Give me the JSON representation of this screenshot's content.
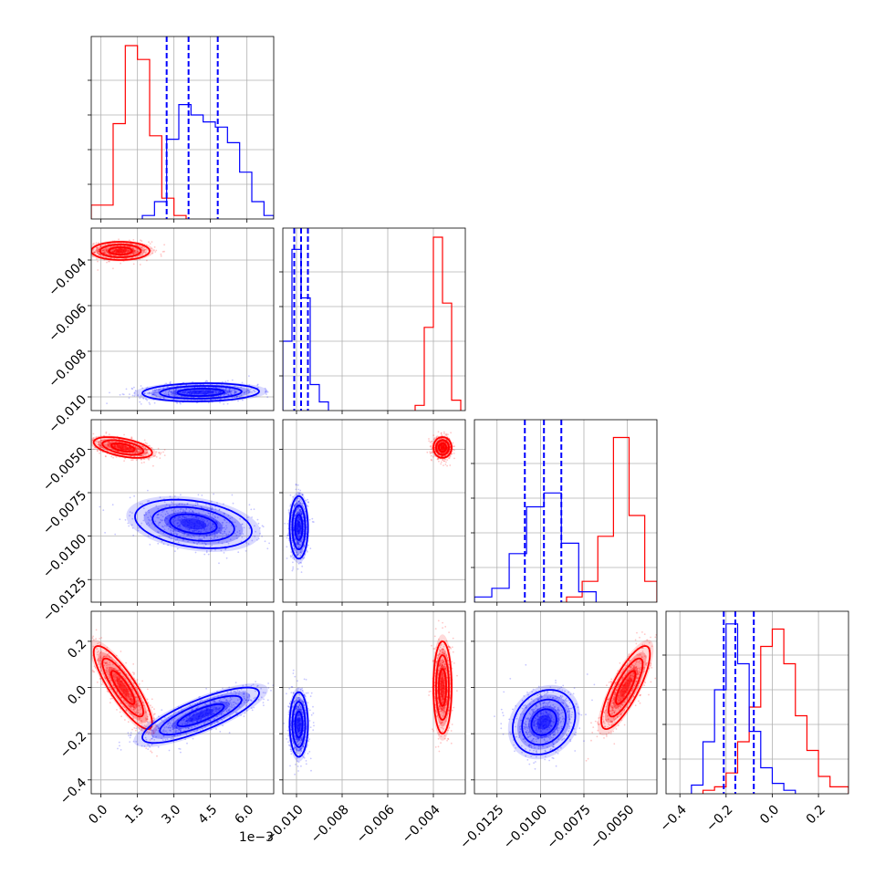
{
  "chart_data": {
    "type": "corner",
    "grid": true,
    "colors": {
      "red": "#ff0000",
      "blue": "#0000ff",
      "grid": "#b0b0b0",
      "frame": "#000000"
    },
    "variables": [
      {
        "range": [
          -0.0004,
          0.0071
        ],
        "ticks": [
          0.0,
          0.0015,
          0.003,
          0.0045,
          0.006
        ],
        "tick_labels": [
          "0.0",
          "1.5",
          "3.0",
          "4.5",
          "6.0"
        ],
        "offset_label": "1e−3"
      },
      {
        "range": [
          -0.0106,
          -0.0026
        ],
        "ticks": [
          -0.01,
          -0.008,
          -0.006,
          -0.004
        ],
        "tick_labels": [
          "−0.010",
          "−0.008",
          "−0.006",
          "−0.004"
        ]
      },
      {
        "range": [
          -0.0138,
          -0.0033
        ],
        "ticks": [
          -0.0125,
          -0.01,
          -0.0075,
          -0.005
        ],
        "tick_labels": [
          "−0.0125",
          "−0.0100",
          "−0.0075",
          "−0.0050"
        ]
      },
      {
        "range": [
          -0.46,
          0.33
        ],
        "ticks": [
          -0.4,
          -0.2,
          0.0,
          0.2
        ],
        "tick_labels": [
          "−0.4",
          "−0.2",
          "0.0",
          "0.2"
        ]
      }
    ],
    "histograms": [
      {
        "red": {
          "edges": [
            -0.0004,
            0.0005,
            0.001,
            0.0015,
            0.002,
            0.0025,
            0.003,
            0.0035
          ],
          "counts": [
            0.08,
            0.55,
            1.0,
            0.92,
            0.48,
            0.12,
            0.02
          ]
        },
        "blue": {
          "edges": [
            0.0017,
            0.0022,
            0.0027,
            0.0032,
            0.0037,
            0.0042,
            0.0047,
            0.0052,
            0.0057,
            0.0062,
            0.0067,
            0.0071
          ],
          "counts": [
            0.02,
            0.1,
            0.46,
            0.66,
            0.6,
            0.56,
            0.53,
            0.44,
            0.27,
            0.1,
            0.02
          ]
        },
        "quantiles": [
          0.0027,
          0.0036,
          0.0048
        ]
      },
      {
        "red": {
          "edges": [
            -0.0048,
            -0.0044,
            -0.004,
            -0.0036,
            -0.0032,
            -0.0028
          ],
          "counts": [
            0.03,
            0.48,
            1.0,
            0.62,
            0.06
          ]
        },
        "blue": {
          "edges": [
            -0.0106,
            -0.0102,
            -0.0098,
            -0.0094,
            -0.009,
            -0.0086
          ],
          "counts": [
            0.4,
            0.93,
            0.65,
            0.15,
            0.05
          ]
        },
        "quantiles": [
          -0.0101,
          -0.0098,
          -0.0095
        ]
      },
      {
        "red": {
          "edges": [
            -0.0085,
            -0.0076,
            -0.0067,
            -0.0058,
            -0.0049,
            -0.004,
            -0.0033
          ],
          "counts": [
            0.03,
            0.12,
            0.38,
            0.95,
            0.5,
            0.12
          ]
        },
        "blue": {
          "edges": [
            -0.0138,
            -0.0128,
            -0.0118,
            -0.0108,
            -0.0098,
            -0.0088,
            -0.0078,
            -0.0068
          ],
          "counts": [
            0.03,
            0.08,
            0.28,
            0.55,
            0.63,
            0.34,
            0.06
          ]
        },
        "quantiles": [
          -0.0109,
          -0.0098,
          -0.0088
        ]
      },
      {
        "red": {
          "edges": [
            -0.3,
            -0.25,
            -0.2,
            -0.15,
            -0.1,
            -0.05,
            0.0,
            0.05,
            0.1,
            0.15,
            0.2,
            0.25,
            0.33
          ],
          "counts": [
            0.02,
            0.04,
            0.12,
            0.3,
            0.5,
            0.85,
            0.95,
            0.75,
            0.45,
            0.25,
            0.1,
            0.04
          ]
        },
        "blue": {
          "edges": [
            -0.35,
            -0.3,
            -0.25,
            -0.2,
            -0.15,
            -0.1,
            -0.05,
            0.0,
            0.05,
            0.1
          ],
          "counts": [
            0.05,
            0.3,
            0.6,
            0.98,
            0.75,
            0.36,
            0.15,
            0.06,
            0.02
          ]
        },
        "quantiles": [
          -0.21,
          -0.16,
          -0.08
        ]
      }
    ],
    "pairs": [
      {
        "row": 1,
        "col": 0,
        "red": {
          "center": [
            0.0008,
            -0.0036
          ],
          "sd": [
            0.0006,
            0.0002
          ],
          "rho": 0.0
        },
        "blue": {
          "center": [
            0.0041,
            -0.0098
          ],
          "sd": [
            0.0012,
            0.0002
          ],
          "rho": 0.1
        }
      },
      {
        "row": 2,
        "col": 0,
        "red": {
          "center": [
            0.0009,
            -0.0049
          ],
          "sd": [
            0.0006,
            0.0003
          ],
          "rho": -0.5
        },
        "blue": {
          "center": [
            0.0038,
            -0.0093
          ],
          "sd": [
            0.0012,
            0.0007
          ],
          "rho": -0.3
        }
      },
      {
        "row": 2,
        "col": 1,
        "red": {
          "center": [
            -0.0036,
            -0.0049
          ],
          "sd": [
            0.0002,
            0.0003
          ],
          "rho": 0.0
        },
        "blue": {
          "center": [
            -0.0099,
            -0.0095
          ],
          "sd": [
            0.0002,
            0.0009
          ],
          "rho": 0.0
        }
      },
      {
        "row": 3,
        "col": 0,
        "red": {
          "center": [
            0.0009,
            0.0
          ],
          "sd": [
            0.0006,
            0.09
          ],
          "rho": -0.85
        },
        "blue": {
          "center": [
            0.0041,
            -0.12
          ],
          "sd": [
            0.0012,
            0.06
          ],
          "rho": 0.8
        }
      },
      {
        "row": 3,
        "col": 1,
        "red": {
          "center": [
            -0.0036,
            0.0
          ],
          "sd": [
            0.0002,
            0.1
          ],
          "rho": 0.0
        },
        "blue": {
          "center": [
            -0.0099,
            -0.16
          ],
          "sd": [
            0.0002,
            0.07
          ],
          "rho": 0.0
        }
      },
      {
        "row": 3,
        "col": 2,
        "red": {
          "center": [
            -0.0051,
            0.0
          ],
          "sd": [
            0.0007,
            0.09
          ],
          "rho": 0.8
        },
        "blue": {
          "center": [
            -0.0098,
            -0.15
          ],
          "sd": [
            0.0009,
            0.07
          ],
          "rho": 0.2
        }
      }
    ]
  }
}
